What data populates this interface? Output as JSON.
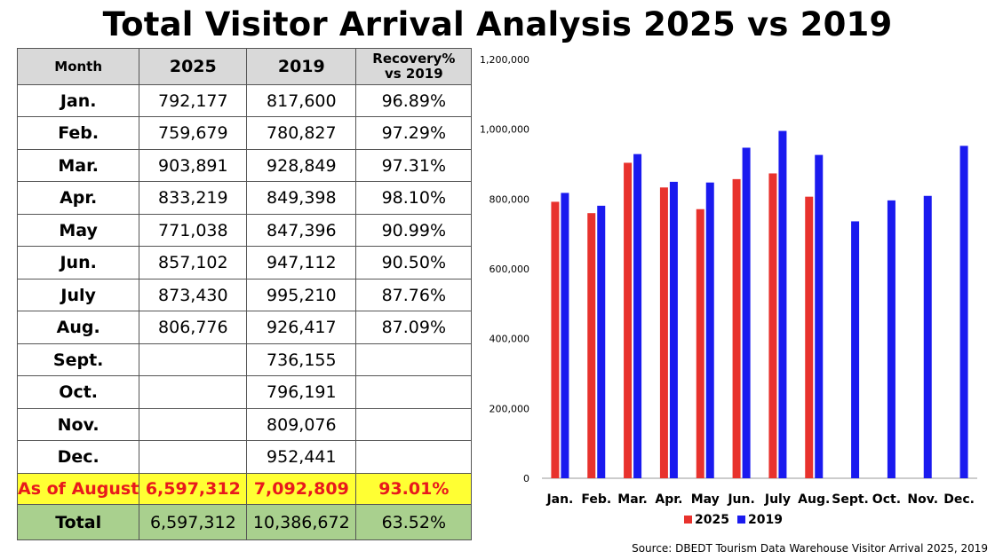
{
  "title": "Total Visitor Arrival Analysis 2025 vs 2019",
  "table": {
    "headers": {
      "month": "Month",
      "y2025": "2025",
      "y2019": "2019",
      "recovery_line1": "Recovery%",
      "recovery_line2": "vs 2019"
    },
    "rows": [
      {
        "month": "Jan.",
        "y2025": "792,177",
        "y2019": "817,600",
        "recovery": "96.89%"
      },
      {
        "month": "Feb.",
        "y2025": "759,679",
        "y2019": "780,827",
        "recovery": "97.29%"
      },
      {
        "month": "Mar.",
        "y2025": "903,891",
        "y2019": "928,849",
        "recovery": "97.31%"
      },
      {
        "month": "Apr.",
        "y2025": "833,219",
        "y2019": "849,398",
        "recovery": "98.10%"
      },
      {
        "month": "May",
        "y2025": "771,038",
        "y2019": "847,396",
        "recovery": "90.99%"
      },
      {
        "month": "Jun.",
        "y2025": "857,102",
        "y2019": "947,112",
        "recovery": "90.50%"
      },
      {
        "month": "July",
        "y2025": "873,430",
        "y2019": "995,210",
        "recovery": "87.76%"
      },
      {
        "month": "Aug.",
        "y2025": "806,776",
        "y2019": "926,417",
        "recovery": "87.09%"
      },
      {
        "month": "Sept.",
        "y2025": "",
        "y2019": "736,155",
        "recovery": ""
      },
      {
        "month": "Oct.",
        "y2025": "",
        "y2019": "796,191",
        "recovery": ""
      },
      {
        "month": "Nov.",
        "y2025": "",
        "y2019": "809,076",
        "recovery": ""
      },
      {
        "month": "Dec.",
        "y2025": "",
        "y2019": "952,441",
        "recovery": ""
      }
    ],
    "as_of": {
      "label": "As of August",
      "y2025": "6,597,312",
      "y2019": "7,092,809",
      "recovery": "93.01%"
    },
    "total": {
      "label": "Total",
      "y2025": "6,597,312",
      "y2019": "10,386,672",
      "recovery": "63.52%"
    }
  },
  "chart_data": {
    "type": "bar",
    "categories": [
      "Jan.",
      "Feb.",
      "Mar.",
      "Apr.",
      "May",
      "Jun.",
      "July",
      "Aug.",
      "Sept.",
      "Oct.",
      "Nov.",
      "Dec."
    ],
    "series": [
      {
        "name": "2025",
        "color": "#e8322d",
        "values": [
          792177,
          759679,
          903891,
          833219,
          771038,
          857102,
          873430,
          806776,
          null,
          null,
          null,
          null
        ]
      },
      {
        "name": "2019",
        "color": "#1a1aef",
        "values": [
          817600,
          780827,
          928849,
          849398,
          847396,
          947112,
          995210,
          926417,
          736155,
          796191,
          809076,
          952441
        ]
      }
    ],
    "ylim": [
      0,
      1200000
    ],
    "yticks": [
      0,
      200000,
      400000,
      600000,
      800000,
      1000000,
      1200000
    ],
    "ytick_labels": [
      "0",
      "200,000",
      "400,000",
      "600,000",
      "800,000",
      "1,000,000",
      "1,200,000"
    ],
    "legend_position": "bottom",
    "grid": false
  },
  "source": "Source: DBEDT Tourism Data Warehouse Visitor Arrival 2025, 2019"
}
